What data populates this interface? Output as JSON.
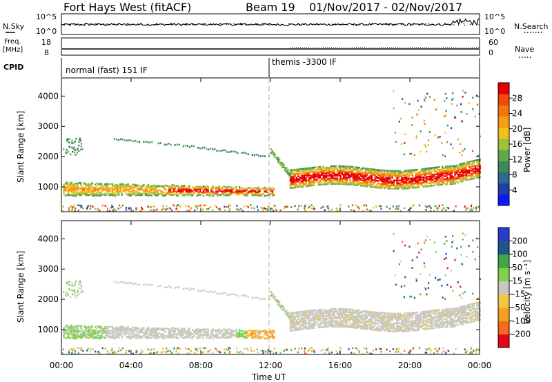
{
  "header": {
    "station": "Fort Hays West (fitACF)",
    "beam": "Beam 19",
    "date_range": "01/Nov/2017 - 02/Nov/2017"
  },
  "strips": {
    "nsky_label": "N.Sky",
    "nsearch_label": "N.Search",
    "freq_label_1": "Freq.",
    "freq_label_2": "[MHz]",
    "nave_label": "Nave",
    "cpid_label": "CPID",
    "left_ticks_top": [
      "10^5",
      "10^0"
    ],
    "right_ticks_top": [
      "10^5",
      "10^0"
    ],
    "freq_ticks": [
      "18",
      "8"
    ],
    "nave_ticks": [
      "60",
      "0"
    ],
    "cpid_modes": [
      "normal (fast) 151 IF",
      "themis -3300 IF"
    ]
  },
  "colors": {
    "power_scale": [
      "#0a1aff",
      "#1c3fa8",
      "#2f6a8c",
      "#3d8a55",
      "#62a84a",
      "#9ec23a",
      "#f2c21a",
      "#f59d14",
      "#f4760c",
      "#ef4b06",
      "#e60000"
    ],
    "velocity_scale": [
      "#e3071b",
      "#f26a1a",
      "#f4a21d",
      "#f6c640",
      "#c8c8c0",
      "#7ed24a",
      "#43a54a",
      "#21568c",
      "#2a3aca"
    ]
  },
  "chart_data": [
    {
      "type": "heatmap",
      "panel": "power",
      "ylabel": "Slant Range [km]",
      "xlabel": "",
      "x_ticks": [
        "00:00",
        "04:00",
        "08:00",
        "12:00",
        "16:00",
        "20:00",
        "00:00"
      ],
      "y_ticks": [
        1000,
        2000,
        3000,
        4000
      ],
      "xlim_hours": [
        0,
        24
      ],
      "ylim_km": [
        180,
        4600
      ],
      "colorbar_label": "Power [dB]",
      "colorbar_ticks": [
        4,
        8,
        12,
        16,
        20,
        24,
        28
      ],
      "colorbar_range": [
        0,
        32
      ],
      "mode_change_hour": 12
    },
    {
      "type": "heatmap",
      "panel": "velocity",
      "ylabel": "Slant Range [km]",
      "xlabel": "Time UT",
      "x_ticks": [
        "00:00",
        "04:00",
        "08:00",
        "12:00",
        "16:00",
        "20:00",
        "00:00"
      ],
      "y_ticks": [
        1000,
        2000,
        3000,
        4000
      ],
      "xlim_hours": [
        0,
        24
      ],
      "ylim_km": [
        180,
        4600
      ],
      "colorbar_label": "Velocity [m s⁻¹]",
      "colorbar_ticks": [
        -200,
        -100,
        -50,
        -15,
        15,
        50,
        100,
        200
      ],
      "mode_change_hour": 12
    }
  ]
}
